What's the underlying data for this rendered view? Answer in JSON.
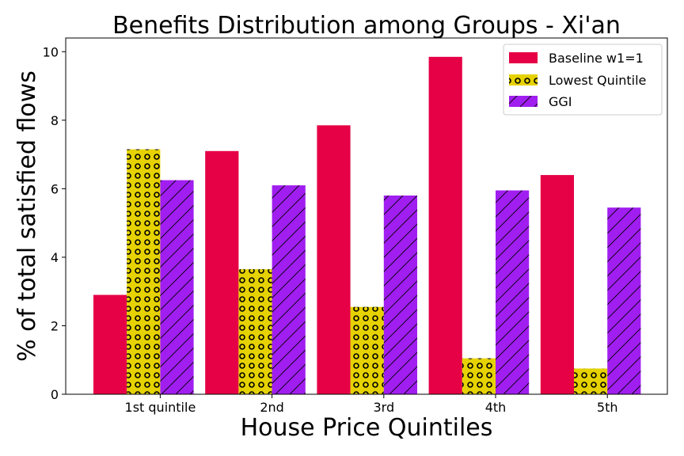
{
  "chart_data": {
    "type": "bar",
    "title": "Benefits Distribution among Groups - Xi'an",
    "xlabel": "House Price Quintiles",
    "ylabel": "% of total satisfied flows",
    "categories": [
      "1st quintile",
      "2nd",
      "3rd",
      "4th",
      "5th"
    ],
    "series": [
      {
        "name": "Baseline w1=1",
        "values": [
          2.9,
          7.1,
          7.85,
          9.85,
          6.4
        ],
        "color": "#e60045",
        "pattern": "solid"
      },
      {
        "name": "Lowest Quintile",
        "values": [
          7.15,
          3.65,
          2.55,
          1.05,
          0.75
        ],
        "color": "#e6d200",
        "pattern": "circles"
      },
      {
        "name": "GGI",
        "values": [
          6.25,
          6.1,
          5.8,
          5.95,
          5.45
        ],
        "color": "#a01ef0",
        "pattern": "hatch"
      }
    ],
    "ylim": [
      0,
      10.4
    ],
    "yticks": [
      "0",
      "2",
      "4",
      "6",
      "8",
      "10"
    ],
    "legend_position": "top-right",
    "grid": false
  }
}
